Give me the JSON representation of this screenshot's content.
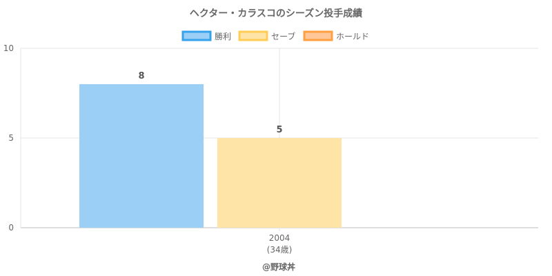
{
  "chart_data": {
    "type": "bar",
    "title": "ヘクター・カラスコのシーズン投手成績",
    "categories": [
      "2004"
    ],
    "category_sublabels": [
      "(34歳)"
    ],
    "series": [
      {
        "name": "勝利",
        "values": [
          8
        ],
        "color": "#9bcff5",
        "border": "#36a2eb"
      },
      {
        "name": "セーブ",
        "values": [
          5
        ],
        "color": "#ffe4a8",
        "border": "#ffcd56"
      },
      {
        "name": "ホールド",
        "values": [
          null
        ],
        "color": "#ffc697",
        "border": "#ff9f40"
      }
    ],
    "yticks": [
      0,
      5,
      10
    ],
    "grid": true,
    "legend_position": "top"
  },
  "footer": "@野球丼"
}
